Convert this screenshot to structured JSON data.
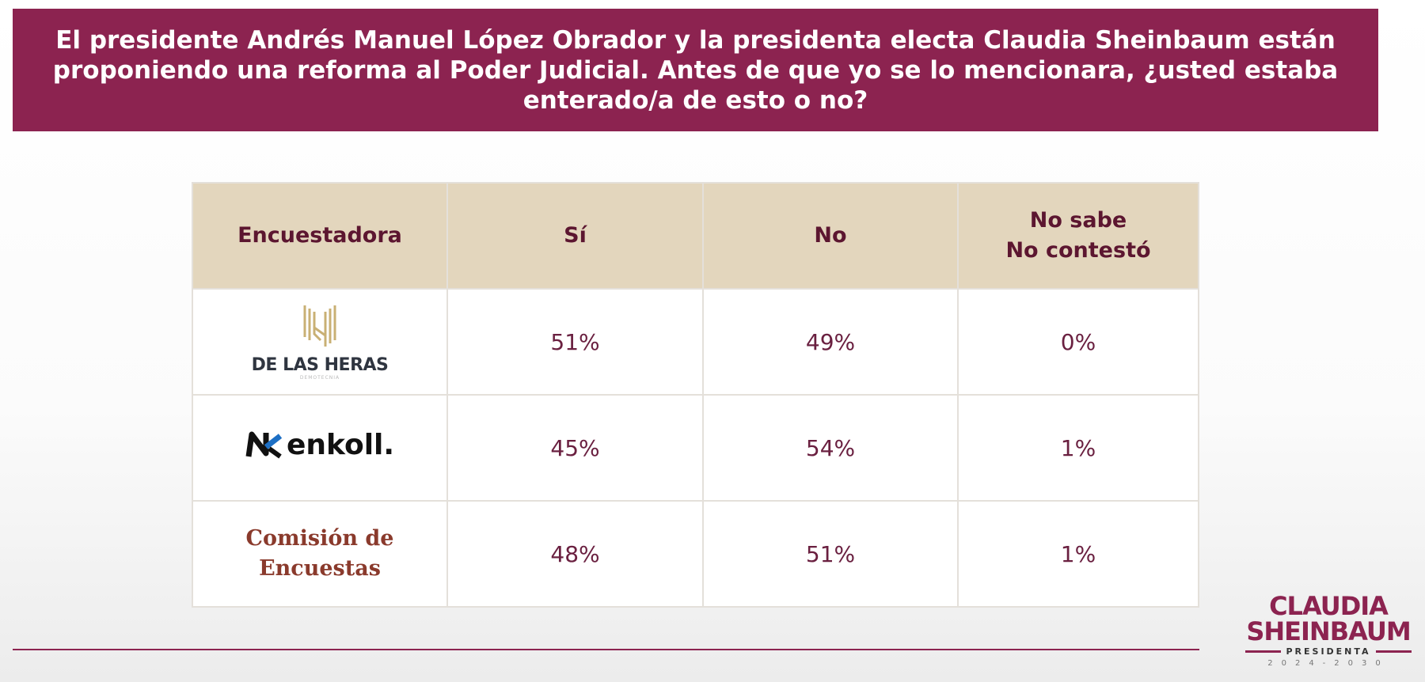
{
  "question": "El presidente Andrés Manuel López Obrador y la presidenta electa Claudia Sheinbaum están proponiendo una reforma al Poder Judicial. Antes de que yo se lo mencionara, ¿usted estaba enterado/a de esto o no?",
  "table": {
    "headers": [
      "Encuestadora",
      "Sí",
      "No",
      "No sabe",
      "No contestó"
    ],
    "rows": [
      {
        "pollster": "DE LAS HERAS",
        "pollster_sub": "DEMOTECNIA",
        "si": "51%",
        "no": "49%",
        "ns": "0%"
      },
      {
        "pollster": "enkoll.",
        "si": "45%",
        "no": "54%",
        "ns": "1%"
      },
      {
        "pollster": "Comisión de",
        "pollster2": "Encuestas",
        "si": "48%",
        "no": "51%",
        "ns": "1%"
      }
    ]
  },
  "logo": {
    "line1": "CLAUDIA",
    "line2": "SHEINBAUM",
    "line3": "PRESIDENTA",
    "line4": "2024-2030"
  },
  "colors": {
    "brand": "#8c2350",
    "header_bg": "#e3d6bd"
  }
}
